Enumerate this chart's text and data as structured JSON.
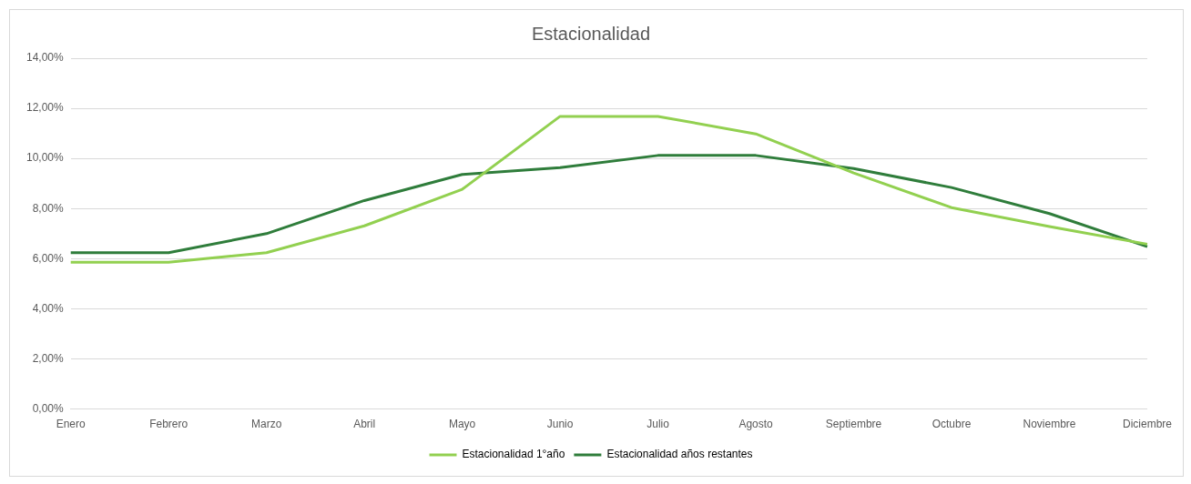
{
  "chart_data": {
    "type": "line",
    "title": "Estacionalidad",
    "categories": [
      "Enero",
      "Febrero",
      "Marzo",
      "Abril",
      "Mayo",
      "Junio",
      "Julio",
      "Agosto",
      "Septiembre",
      "Octubre",
      "Noviembre",
      "Diciembre"
    ],
    "series": [
      {
        "name": "Estacionalidad 1°año",
        "color": "#92d050",
        "values": [
          5.86,
          5.86,
          6.24,
          7.31,
          8.77,
          11.68,
          11.68,
          10.98,
          9.42,
          8.04,
          7.28,
          6.58
        ]
      },
      {
        "name": "Estacionalidad años restantes",
        "color": "#2f7d3b",
        "values": [
          6.24,
          6.24,
          7.0,
          8.32,
          9.36,
          9.63,
          10.12,
          10.12,
          9.6,
          8.84,
          7.8,
          6.48
        ]
      }
    ],
    "ylim": [
      0,
      14
    ],
    "yticks": [
      {
        "value": 0,
        "label": "0,00%"
      },
      {
        "value": 2,
        "label": "2,00%"
      },
      {
        "value": 4,
        "label": "4,00%"
      },
      {
        "value": 6,
        "label": "6,00%"
      },
      {
        "value": 8,
        "label": "8,00%"
      },
      {
        "value": 10,
        "label": "10,00%"
      },
      {
        "value": 12,
        "label": "12,00%"
      },
      {
        "value": 14,
        "label": "14,00%"
      }
    ],
    "grid": "y",
    "legend": "bottom",
    "marker": "none",
    "line_style": "solid"
  }
}
